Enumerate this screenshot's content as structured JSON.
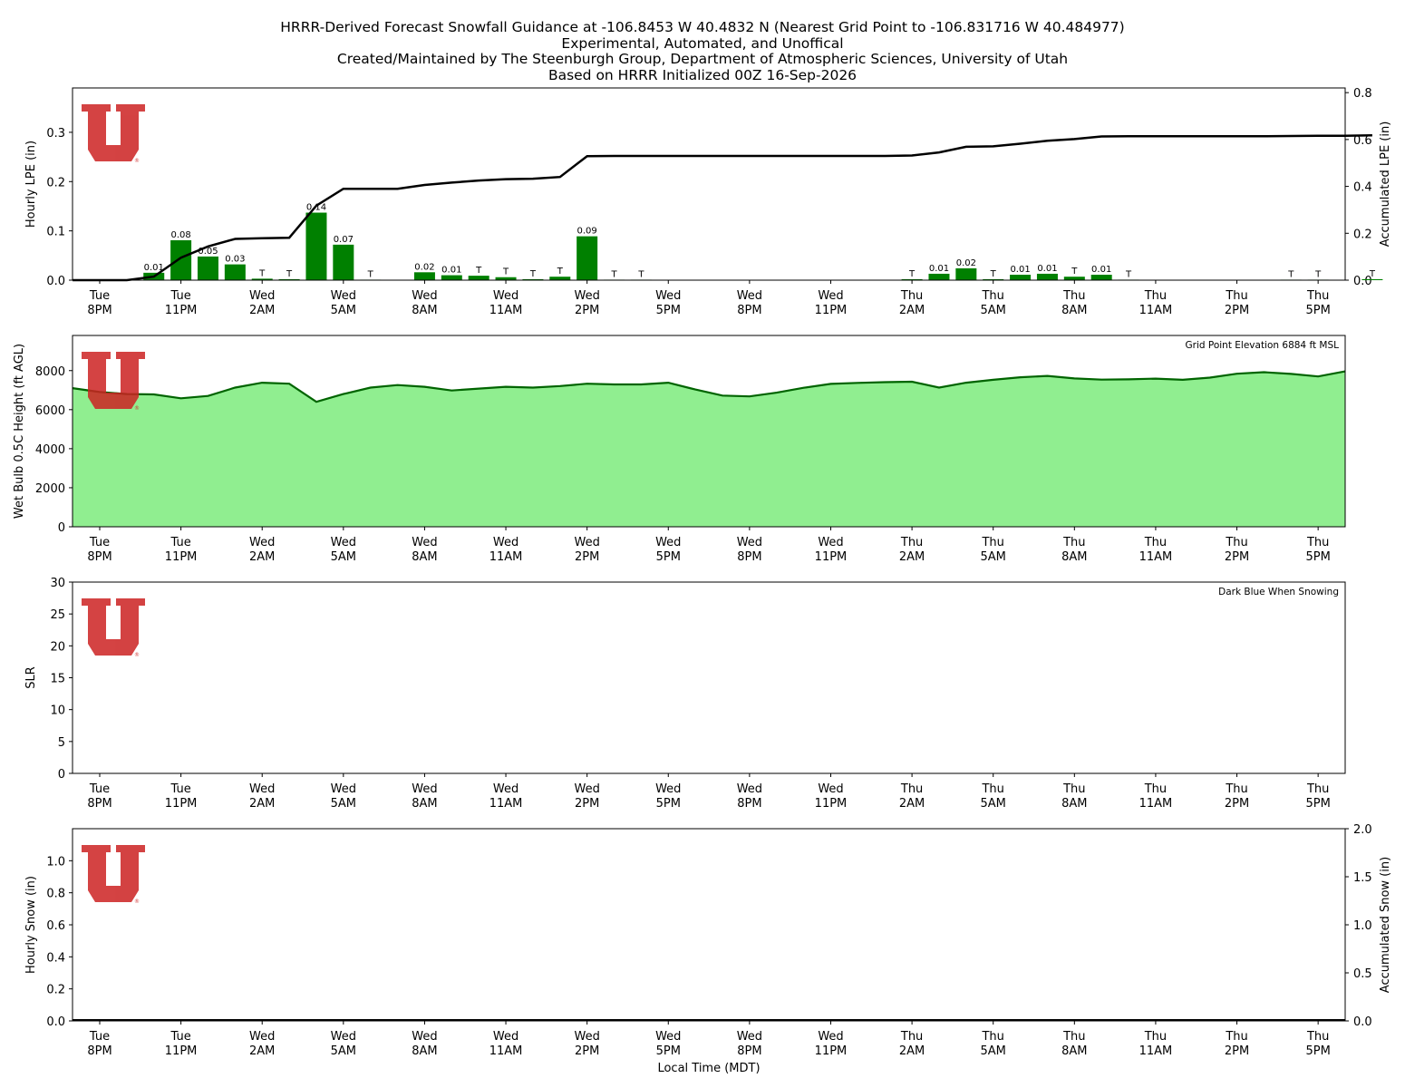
{
  "titles": [
    "HRRR-Derived Forecast Snowfall Guidance at -106.8453 W 40.4832 N (Nearest Grid Point to -106.831716 W 40.484977)",
    "Experimental, Automated, and Unoffical",
    "Created/Maintained by The Steenburgh Group, Department of Atmospheric Sciences, University of Utah",
    "Based on HRRR Initialized 00Z 16-Sep-2026"
  ],
  "xaxis": {
    "label": "Local Time (MDT)",
    "ticks": [
      {
        "day": "Tue",
        "time": "8PM"
      },
      {
        "day": "Tue",
        "time": "11PM"
      },
      {
        "day": "Wed",
        "time": "2AM"
      },
      {
        "day": "Wed",
        "time": "5AM"
      },
      {
        "day": "Wed",
        "time": "8AM"
      },
      {
        "day": "Wed",
        "time": "11AM"
      },
      {
        "day": "Wed",
        "time": "2PM"
      },
      {
        "day": "Wed",
        "time": "5PM"
      },
      {
        "day": "Wed",
        "time": "8PM"
      },
      {
        "day": "Wed",
        "time": "11PM"
      },
      {
        "day": "Thu",
        "time": "2AM"
      },
      {
        "day": "Thu",
        "time": "5AM"
      },
      {
        "day": "Thu",
        "time": "8AM"
      },
      {
        "day": "Thu",
        "time": "11AM"
      },
      {
        "day": "Thu",
        "time": "2PM"
      },
      {
        "day": "Thu",
        "time": "5PM"
      }
    ]
  },
  "chart_data": [
    {
      "type": "bar",
      "ylabel": "Hourly LPE (in)",
      "y2label": "Accumulated LPE (in)",
      "ylim": [
        0,
        0.39
      ],
      "y2lim": [
        0,
        0.82
      ],
      "yticks": [
        "0.0",
        "0.1",
        "0.2",
        "0.3"
      ],
      "y2ticks": [
        "0.0",
        "0.2",
        "0.4",
        "0.6",
        "0.8"
      ],
      "hours_from_first_tick": [
        -1,
        0,
        1,
        2,
        3,
        4,
        5,
        6,
        7,
        8,
        9,
        10,
        11,
        12,
        13,
        14,
        15,
        16,
        17,
        18,
        19,
        20,
        21,
        22,
        23,
        24,
        25,
        26,
        27,
        28,
        29,
        30,
        31,
        32,
        33,
        34,
        35,
        36,
        37,
        38,
        39,
        40,
        41,
        42,
        43,
        44,
        45,
        46,
        47
      ],
      "hourly_lpe": [
        0,
        0,
        0,
        0.015,
        0.081,
        0.048,
        0.032,
        0.003,
        0.002,
        0.137,
        0.072,
        0.001,
        0,
        0.016,
        0.01,
        0.009,
        0.006,
        0.002,
        0.007,
        0.089,
        0.001,
        0.001,
        0,
        0,
        0,
        0,
        0,
        0,
        0,
        0,
        0,
        0.002,
        0.013,
        0.024,
        0.002,
        0.011,
        0.013,
        0.007,
        0.011,
        0.001,
        0,
        0,
        0,
        0,
        0,
        0.001,
        0.001,
        0,
        0.002
      ],
      "bar_labels": [
        "",
        "",
        "",
        "0.01",
        "0.08",
        "0.05",
        "0.03",
        "T",
        "T",
        "0.14",
        "0.07",
        "T",
        "",
        "0.02",
        "0.01",
        "T",
        "T",
        "T",
        "T",
        "0.09",
        "T",
        "T",
        "",
        "",
        "",
        "",
        "",
        "",
        "",
        "",
        "",
        "T",
        "0.01",
        "0.02",
        "T",
        "0.01",
        "0.01",
        "T",
        "0.01",
        "T",
        "",
        "",
        "",
        "",
        "",
        "T",
        "T",
        "",
        "T"
      ],
      "accumulated_lpe": [
        0,
        0,
        0,
        0.015,
        0.096,
        0.144,
        0.176,
        0.179,
        0.181,
        0.318,
        0.39,
        0.39,
        0.39,
        0.406,
        0.416,
        0.425,
        0.431,
        0.433,
        0.44,
        0.529,
        0.53,
        0.53,
        0.53,
        0.53,
        0.53,
        0.53,
        0.53,
        0.53,
        0.53,
        0.53,
        0.53,
        0.532,
        0.545,
        0.569,
        0.571,
        0.582,
        0.595,
        0.602,
        0.613,
        0.614,
        0.614,
        0.614,
        0.614,
        0.614,
        0.614,
        0.615,
        0.616,
        0.616,
        0.618
      ],
      "colors": {
        "bars": "#008000",
        "line": "#000000"
      }
    },
    {
      "type": "area",
      "ylabel": "Wet Bulb 0.5C Height (ft AGL)",
      "annotation": "Grid Point Elevation 6884 ft MSL",
      "ylim": [
        0,
        9800
      ],
      "yticks": [
        "0",
        "2000",
        "4000",
        "6000",
        "8000"
      ],
      "hours_from_first_tick": [
        -1,
        0,
        1,
        2,
        3,
        4,
        5,
        6,
        7,
        8,
        9,
        10,
        11,
        12,
        13,
        14,
        15,
        16,
        17,
        18,
        19,
        20,
        21,
        22,
        23,
        24,
        25,
        26,
        27,
        28,
        29,
        30,
        31,
        32,
        33,
        34,
        35,
        36,
        37,
        38,
        39,
        40,
        41,
        42,
        43,
        44,
        45,
        46,
        47
      ],
      "values": [
        7100,
        6900,
        6800,
        6780,
        6580,
        6700,
        7130,
        7380,
        7330,
        6400,
        6800,
        7130,
        7260,
        7170,
        6980,
        7080,
        7170,
        7130,
        7210,
        7330,
        7290,
        7290,
        7380,
        7030,
        6720,
        6680,
        6870,
        7120,
        7320,
        7370,
        7410,
        7430,
        7130,
        7380,
        7530,
        7660,
        7730,
        7600,
        7540,
        7550,
        7590,
        7530,
        7640,
        7840,
        7920,
        7830,
        7700,
        7960,
        8350
      ],
      "colors": {
        "fill": "#90ee90",
        "line": "#006400"
      }
    },
    {
      "type": "line",
      "ylabel": "SLR",
      "annotation": "Dark Blue When Snowing",
      "ylim": [
        0,
        30
      ],
      "yticks": [
        "0",
        "5",
        "10",
        "15",
        "20",
        "25",
        "30"
      ],
      "values": []
    },
    {
      "type": "bar",
      "ylabel": "Hourly Snow (in)",
      "y2label": "Accumulated Snow (in)",
      "xlabel": "Local Time (MDT)",
      "ylim": [
        0,
        1.2
      ],
      "y2lim": [
        0,
        2.0
      ],
      "yticks": [
        "0.0",
        "0.2",
        "0.4",
        "0.6",
        "0.8",
        "1.0"
      ],
      "y2ticks": [
        "0.0",
        "0.5",
        "1.0",
        "1.5",
        "2.0"
      ],
      "hourly_snow": [
        0
      ],
      "accumulated_snow": [
        0
      ]
    }
  ],
  "logo": {
    "text": "U",
    "color": "#cc2222",
    "mark": "®"
  }
}
